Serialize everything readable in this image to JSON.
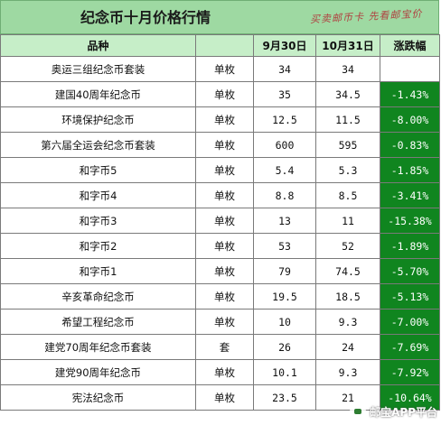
{
  "title": "纪念币十月价格行情",
  "tagline": "买卖邮币卡 先看邮宝价",
  "headers": {
    "name": "品种",
    "unit": "",
    "sep30": "9月30日",
    "oct31": "10月31日",
    "change": "涨跌幅"
  },
  "rows": [
    {
      "name": "奥运三组纪念币套装",
      "unit": "单枚",
      "sep30": "34",
      "oct31": "34",
      "change": ""
    },
    {
      "name": "建国40周年纪念币",
      "unit": "单枚",
      "sep30": "35",
      "oct31": "34.5",
      "change": "-1.43%"
    },
    {
      "name": "环境保护纪念币",
      "unit": "单枚",
      "sep30": "12.5",
      "oct31": "11.5",
      "change": "-8.00%"
    },
    {
      "name": "第六届全运会纪念币套装",
      "unit": "单枚",
      "sep30": "600",
      "oct31": "595",
      "change": "-0.83%"
    },
    {
      "name": "和字币5",
      "unit": "单枚",
      "sep30": "5.4",
      "oct31": "5.3",
      "change": "-1.85%"
    },
    {
      "name": "和字币4",
      "unit": "单枚",
      "sep30": "8.8",
      "oct31": "8.5",
      "change": "-3.41%"
    },
    {
      "name": "和字币3",
      "unit": "单枚",
      "sep30": "13",
      "oct31": "11",
      "change": "-15.38%"
    },
    {
      "name": "和字币2",
      "unit": "单枚",
      "sep30": "53",
      "oct31": "52",
      "change": "-1.89%"
    },
    {
      "name": "和字币1",
      "unit": "单枚",
      "sep30": "79",
      "oct31": "74.5",
      "change": "-5.70%"
    },
    {
      "name": "辛亥革命纪念币",
      "unit": "单枚",
      "sep30": "19.5",
      "oct31": "18.5",
      "change": "-5.13%"
    },
    {
      "name": "希望工程纪念币",
      "unit": "单枚",
      "sep30": "10",
      "oct31": "9.3",
      "change": "-7.00%"
    },
    {
      "name": "建党70周年纪念币套装",
      "unit": "套",
      "sep30": "26",
      "oct31": "24",
      "change": "-7.69%"
    },
    {
      "name": "建党90周年纪念币",
      "unit": "单枚",
      "sep30": "10.1",
      "oct31": "9.3",
      "change": "-7.92%"
    },
    {
      "name": "宪法纪念币",
      "unit": "单枚",
      "sep30": "23.5",
      "oct31": "21",
      "change": "-10.64%"
    }
  ],
  "watermark": "邮宝APP平台",
  "colors": {
    "header_bg": "#9ed9a2",
    "change_bg": "#10851f"
  }
}
